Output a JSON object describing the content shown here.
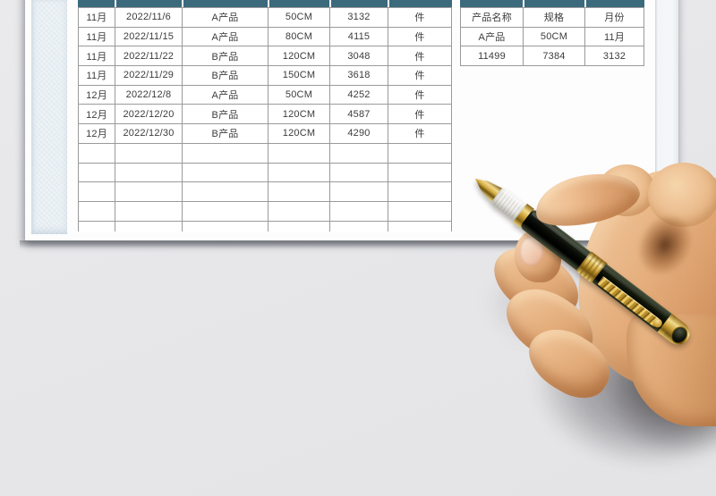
{
  "main_table": {
    "rows": [
      [
        "11月",
        "2022/11/6",
        "A产品",
        "50CM",
        "3132",
        "件"
      ],
      [
        "11月",
        "2022/11/15",
        "A产品",
        "80CM",
        "4115",
        "件"
      ],
      [
        "11月",
        "2022/11/22",
        "B产品",
        "120CM",
        "3048",
        "件"
      ],
      [
        "11月",
        "2022/11/29",
        "B产品",
        "150CM",
        "3618",
        "件"
      ],
      [
        "12月",
        "2022/12/8",
        "A产品",
        "50CM",
        "4252",
        "件"
      ],
      [
        "12月",
        "2022/12/20",
        "B产品",
        "120CM",
        "4587",
        "件"
      ],
      [
        "12月",
        "2022/12/30",
        "B产品",
        "120CM",
        "4290",
        "件"
      ]
    ],
    "empty_row_count": 5
  },
  "summary_table": {
    "header": [
      "产品名称",
      "规格",
      "月份"
    ],
    "rows": [
      [
        "A产品",
        "50CM",
        "11月"
      ],
      [
        "11499",
        "7384",
        "3132"
      ]
    ]
  },
  "colors": {
    "header_teal": "#3B6A7C",
    "table_border": "#9A9A9A",
    "cell_text": "#3C3C3C",
    "page_white": "#FDFDFE",
    "canvas_gray": "#E8E8EA",
    "strip_blue": "#EEF3F6",
    "pen_gold": "#C79D33",
    "pen_black": "#0A0D08"
  },
  "decor": {
    "photo": "hand-holding-fountain-pen"
  }
}
